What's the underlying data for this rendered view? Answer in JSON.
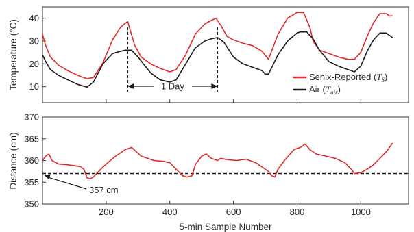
{
  "chart_data": [
    {
      "type": "line",
      "xlabel": "",
      "ylabel": "Temperature (°C)",
      "xlim": [
        0,
        1150
      ],
      "ylim": [
        3,
        45
      ],
      "yticks": [
        10,
        20,
        30,
        40
      ],
      "grid": false,
      "legend_position": "bottom-right",
      "legend": {
        "senix_label": "Senix-Reported (",
        "senix_symbol": "T",
        "senix_sub": "S",
        "air_label": "Air (",
        "air_symbol": "T",
        "air_sub": "air",
        "close": ")"
      },
      "colors": {
        "senix": "#e0282b",
        "air": "#1a1a1a",
        "annotation": "#1a1a1a"
      },
      "annotation": {
        "text": "1 Day",
        "x_start": 268,
        "x_end": 550
      },
      "series": [
        {
          "name": "Senix-Reported (TS)",
          "x": [
            0,
            10,
            25,
            50,
            80,
            110,
            140,
            160,
            190,
            220,
            245,
            260,
            268,
            275,
            290,
            310,
            340,
            370,
            400,
            420,
            450,
            480,
            510,
            530,
            545,
            560,
            580,
            600,
            630,
            660,
            690,
            710,
            740,
            770,
            800,
            810,
            820,
            840,
            850,
            870,
            900,
            930,
            960,
            980,
            1000,
            1020,
            1040,
            1060,
            1070,
            1080,
            1090,
            1100
          ],
          "y": [
            33,
            28,
            23,
            19.5,
            17,
            15,
            13.5,
            14,
            20.5,
            30.5,
            36,
            37.8,
            38.5,
            35,
            28,
            23,
            20,
            18,
            16.5,
            17.5,
            24,
            33,
            37.5,
            39,
            40,
            37,
            32,
            30.5,
            29,
            28,
            25.5,
            22,
            33,
            40,
            42.5,
            42.5,
            42.5,
            36,
            30,
            26,
            24.5,
            23,
            22,
            22,
            25,
            32,
            38,
            42,
            42,
            42,
            41,
            41
          ]
        },
        {
          "name": "Air (Tair)",
          "x": [
            0,
            10,
            25,
            50,
            80,
            110,
            140,
            160,
            190,
            220,
            245,
            260,
            280,
            300,
            340,
            370,
            400,
            420,
            450,
            480,
            510,
            530,
            550,
            570,
            600,
            630,
            660,
            690,
            700,
            710,
            740,
            770,
            800,
            810,
            830,
            850,
            870,
            900,
            930,
            960,
            980,
            1000,
            1020,
            1040,
            1060,
            1080,
            1090,
            1100
          ],
          "y": [
            24,
            21,
            17.5,
            15,
            13,
            11,
            9.8,
            12,
            20,
            24.5,
            25.5,
            26,
            26,
            23,
            16,
            13,
            12,
            13,
            20,
            27,
            30,
            31,
            31.5,
            29.5,
            23,
            20,
            18.5,
            17,
            15.5,
            15.5,
            24,
            30,
            33.5,
            34,
            34,
            31,
            26,
            21,
            19,
            17.5,
            16.5,
            19,
            25.5,
            30.5,
            33.5,
            33.5,
            32.5,
            31.5
          ]
        }
      ]
    },
    {
      "type": "line",
      "xlabel": "5-min Sample Number",
      "ylabel": "Distance (cm)",
      "xlim": [
        0,
        1150
      ],
      "ylim": [
        350,
        370
      ],
      "xticks": [
        200,
        400,
        600,
        800,
        1000
      ],
      "yticks": [
        350,
        355,
        360,
        365,
        370
      ],
      "grid": false,
      "reference_line": {
        "y": 357,
        "label": "357 cm",
        "style": "dashed"
      },
      "colors": {
        "distance": "#e0282b",
        "reference": "#1a1a1a"
      },
      "series": [
        {
          "name": "",
          "x": [
            0,
            10,
            20,
            30,
            50,
            80,
            100,
            120,
            130,
            140,
            150,
            160,
            170,
            190,
            210,
            230,
            260,
            280,
            295,
            310,
            330,
            350,
            380,
            400,
            420,
            440,
            455,
            470,
            480,
            500,
            515,
            530,
            550,
            560,
            580,
            610,
            640,
            670,
            690,
            710,
            720,
            730,
            740,
            760,
            790,
            810,
            825,
            840,
            860,
            890,
            920,
            950,
            970,
            980,
            1000,
            1020,
            1040,
            1060,
            1080,
            1100
          ],
          "y": [
            360,
            361,
            361.5,
            360,
            359.2,
            359,
            358.8,
            358.6,
            358,
            356,
            355.8,
            356.2,
            357,
            358.5,
            359.8,
            361,
            362.5,
            363,
            362,
            361,
            360.5,
            360,
            359.8,
            359.5,
            358,
            356.5,
            356.2,
            356.5,
            359,
            361,
            361.5,
            360.5,
            360,
            360.5,
            360.2,
            360,
            360.3,
            359.5,
            358.5,
            357.5,
            356.5,
            356.2,
            358,
            360,
            362.5,
            363,
            363.8,
            362.5,
            361.5,
            361,
            360.5,
            359.5,
            358,
            357,
            357.2,
            358,
            359,
            360.5,
            362,
            364
          ]
        }
      ]
    }
  ]
}
